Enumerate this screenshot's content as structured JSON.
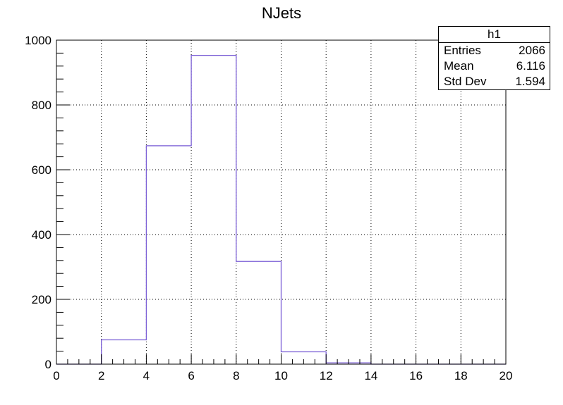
{
  "chart_data": {
    "type": "bar",
    "title": "NJets",
    "xlabel": "",
    "ylabel": "",
    "xlim": [
      0,
      20
    ],
    "ylim": [
      0,
      1000
    ],
    "bin_edges": [
      0,
      2,
      4,
      6,
      8,
      10,
      12,
      14,
      16,
      18,
      20
    ],
    "values": [
      0,
      75,
      674,
      953,
      317,
      38,
      4,
      0,
      0,
      0
    ],
    "x_ticks": [
      "0",
      "2",
      "4",
      "6",
      "8",
      "10",
      "12",
      "14",
      "16",
      "18",
      "20"
    ],
    "y_ticks": [
      "0",
      "200",
      "400",
      "600",
      "800",
      "1000"
    ],
    "grid": true,
    "line_color": "#7b5fd6"
  },
  "stats": {
    "title": "h1",
    "rows": [
      {
        "label": "Entries",
        "value": "2066"
      },
      {
        "label": "Mean",
        "value": "6.116"
      },
      {
        "label": "Std Dev",
        "value": "1.594"
      }
    ]
  }
}
